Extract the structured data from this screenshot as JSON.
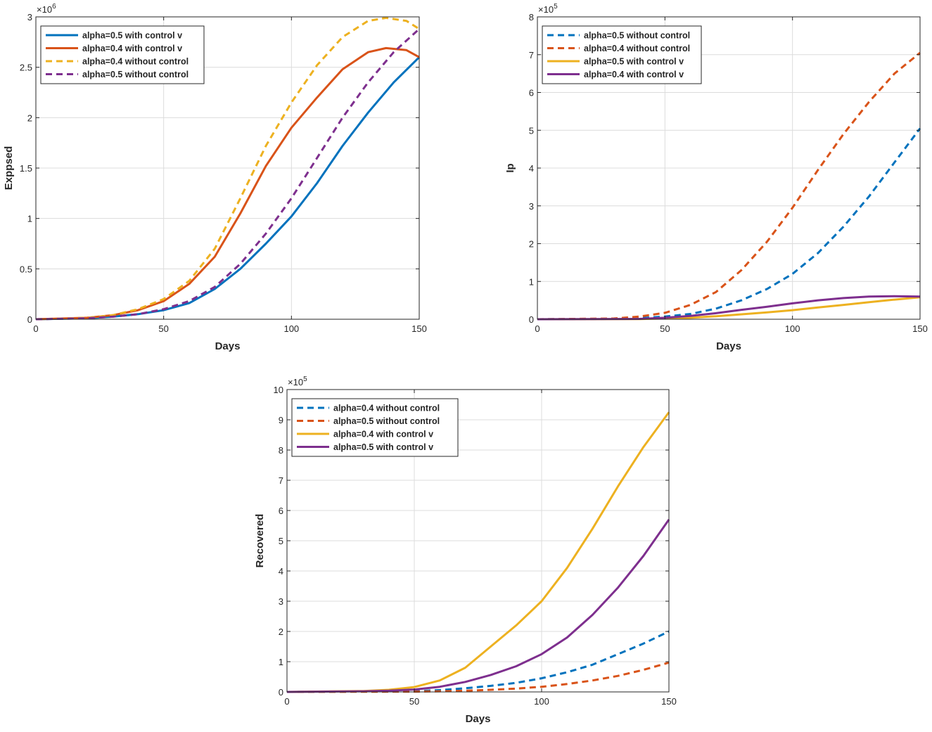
{
  "colors": {
    "blue": "#0072BD",
    "orange": "#D95319",
    "yellow": "#EDB120",
    "purple": "#7E2F8E",
    "grid": "#DCDCDC",
    "axis": "#262626"
  },
  "chart_data": [
    {
      "type": "line",
      "title": "",
      "xlabel": "Days",
      "ylabel": "Exppsed",
      "xlim": [
        0,
        150
      ],
      "ylim": [
        0,
        3
      ],
      "xticks": [
        0,
        50,
        100,
        150
      ],
      "yticks": [
        0,
        0.5,
        1,
        1.5,
        2,
        2.5,
        3
      ],
      "ytick_labels": [
        "0",
        "0.5",
        "1",
        "1.5",
        "2",
        "2.5",
        "3"
      ],
      "exponent_base": "×10",
      "exponent_power": "6",
      "grid": true,
      "legend_position": "top-left",
      "series": [
        {
          "name": "alpha=0.5 with control v",
          "color": "#0072BD",
          "dashed": false,
          "x": [
            0,
            20,
            30,
            40,
            50,
            60,
            70,
            80,
            90,
            100,
            110,
            120,
            130,
            140,
            150
          ],
          "y": [
            0,
            0.01,
            0.025,
            0.05,
            0.09,
            0.16,
            0.3,
            0.5,
            0.75,
            1.02,
            1.35,
            1.72,
            2.05,
            2.35,
            2.6
          ]
        },
        {
          "name": "alpha=0.4 with control v",
          "color": "#D95319",
          "dashed": false,
          "x": [
            0,
            20,
            30,
            40,
            50,
            60,
            70,
            80,
            90,
            100,
            110,
            120,
            130,
            137,
            145,
            150
          ],
          "y": [
            0,
            0.015,
            0.04,
            0.09,
            0.18,
            0.35,
            0.62,
            1.05,
            1.52,
            1.9,
            2.2,
            2.48,
            2.65,
            2.69,
            2.67,
            2.6
          ]
        },
        {
          "name": "alpha=0.4 without control",
          "color": "#EDB120",
          "dashed": true,
          "x": [
            0,
            20,
            30,
            40,
            50,
            60,
            70,
            80,
            90,
            100,
            110,
            120,
            130,
            137,
            145,
            150
          ],
          "y": [
            0,
            0.015,
            0.04,
            0.1,
            0.2,
            0.38,
            0.7,
            1.2,
            1.72,
            2.15,
            2.52,
            2.8,
            2.96,
            2.99,
            2.96,
            2.88
          ]
        },
        {
          "name": "alpha=0.5 without control",
          "color": "#7E2F8E",
          "dashed": true,
          "x": [
            0,
            20,
            30,
            40,
            50,
            60,
            70,
            80,
            90,
            100,
            110,
            120,
            130,
            140,
            150
          ],
          "y": [
            0,
            0.01,
            0.025,
            0.05,
            0.1,
            0.18,
            0.32,
            0.55,
            0.85,
            1.2,
            1.6,
            2.0,
            2.35,
            2.65,
            2.88
          ]
        }
      ]
    },
    {
      "type": "line",
      "title": "",
      "xlabel": "Days",
      "ylabel": "Ip",
      "xlim": [
        0,
        150
      ],
      "ylim": [
        0,
        8
      ],
      "xticks": [
        0,
        50,
        100,
        150
      ],
      "yticks": [
        0,
        1,
        2,
        3,
        4,
        5,
        6,
        7,
        8
      ],
      "ytick_labels": [
        "0",
        "1",
        "2",
        "3",
        "4",
        "5",
        "6",
        "7",
        "8"
      ],
      "exponent_base": "×10",
      "exponent_power": "5",
      "grid": true,
      "legend_position": "top-left",
      "series": [
        {
          "name": "alpha=0.5 without control",
          "color": "#0072BD",
          "dashed": true,
          "x": [
            0,
            30,
            40,
            50,
            60,
            70,
            80,
            90,
            100,
            110,
            120,
            130,
            140,
            150
          ],
          "y": [
            0,
            0.01,
            0.03,
            0.07,
            0.14,
            0.28,
            0.5,
            0.8,
            1.2,
            1.75,
            2.45,
            3.25,
            4.15,
            5.05
          ]
        },
        {
          "name": "alpha=0.4 without control",
          "color": "#D95319",
          "dashed": true,
          "x": [
            0,
            30,
            40,
            50,
            60,
            70,
            80,
            90,
            100,
            110,
            120,
            130,
            140,
            150
          ],
          "y": [
            0,
            0.02,
            0.07,
            0.17,
            0.38,
            0.72,
            1.3,
            2.05,
            2.95,
            3.95,
            4.9,
            5.75,
            6.5,
            7.05
          ]
        },
        {
          "name": "alpha=0.5 with control v",
          "color": "#EDB120",
          "dashed": false,
          "x": [
            0,
            40,
            50,
            60,
            70,
            80,
            90,
            100,
            110,
            120,
            130,
            140,
            150
          ],
          "y": [
            0,
            0.005,
            0.02,
            0.04,
            0.08,
            0.13,
            0.18,
            0.24,
            0.31,
            0.38,
            0.45,
            0.52,
            0.58
          ]
        },
        {
          "name": "alpha=0.4 with control v",
          "color": "#7E2F8E",
          "dashed": false,
          "x": [
            0,
            40,
            50,
            60,
            70,
            80,
            90,
            100,
            110,
            120,
            130,
            140,
            150
          ],
          "y": [
            0,
            0.01,
            0.04,
            0.09,
            0.16,
            0.25,
            0.33,
            0.42,
            0.5,
            0.56,
            0.6,
            0.61,
            0.6
          ]
        }
      ]
    },
    {
      "type": "line",
      "title": "",
      "xlabel": "Days",
      "ylabel": "Recovered",
      "xlim": [
        0,
        150
      ],
      "ylim": [
        0,
        10
      ],
      "xticks": [
        0,
        50,
        100,
        150
      ],
      "yticks": [
        0,
        1,
        2,
        3,
        4,
        5,
        6,
        7,
        8,
        9,
        10
      ],
      "ytick_labels": [
        "0",
        "1",
        "2",
        "3",
        "4",
        "5",
        "6",
        "7",
        "8",
        "9",
        "10"
      ],
      "exponent_base": "×10",
      "exponent_power": "5",
      "grid": true,
      "legend_position": "top-left",
      "series": [
        {
          "name": "alpha=0.4 without control",
          "color": "#0072BD",
          "dashed": true,
          "x": [
            0,
            50,
            60,
            70,
            80,
            90,
            100,
            110,
            120,
            130,
            140,
            150
          ],
          "y": [
            0,
            0.02,
            0.06,
            0.12,
            0.2,
            0.3,
            0.45,
            0.65,
            0.9,
            1.25,
            1.6,
            2.0
          ]
        },
        {
          "name": "alpha=0.5 without control",
          "color": "#D95319",
          "dashed": true,
          "x": [
            0,
            50,
            60,
            70,
            80,
            90,
            100,
            110,
            120,
            130,
            140,
            150
          ],
          "y": [
            0,
            0.01,
            0.02,
            0.04,
            0.07,
            0.11,
            0.17,
            0.26,
            0.38,
            0.53,
            0.73,
            0.97
          ]
        },
        {
          "name": "alpha=0.4 with control v",
          "color": "#EDB120",
          "dashed": false,
          "x": [
            0,
            30,
            40,
            50,
            60,
            70,
            80,
            90,
            100,
            110,
            120,
            130,
            140,
            150
          ],
          "y": [
            0,
            0.03,
            0.07,
            0.16,
            0.38,
            0.8,
            1.5,
            2.2,
            3.0,
            4.1,
            5.4,
            6.8,
            8.1,
            9.25
          ]
        },
        {
          "name": "alpha=0.5 with control v",
          "color": "#7E2F8E",
          "dashed": false,
          "x": [
            0,
            30,
            40,
            50,
            60,
            70,
            80,
            90,
            100,
            110,
            120,
            130,
            140,
            150
          ],
          "y": [
            0,
            0.02,
            0.04,
            0.08,
            0.17,
            0.33,
            0.56,
            0.85,
            1.25,
            1.8,
            2.55,
            3.45,
            4.5,
            5.7
          ]
        }
      ]
    }
  ]
}
